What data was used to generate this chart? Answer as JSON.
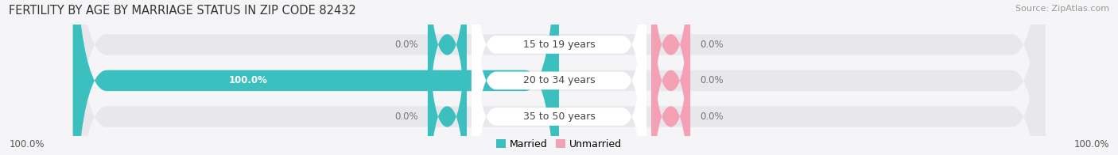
{
  "title": "FERTILITY BY AGE BY MARRIAGE STATUS IN ZIP CODE 82432",
  "source": "Source: ZipAtlas.com",
  "categories": [
    "15 to 19 years",
    "20 to 34 years",
    "35 to 50 years"
  ],
  "married_values": [
    0.0,
    100.0,
    0.0
  ],
  "unmarried_values": [
    0.0,
    0.0,
    0.0
  ],
  "married_color": "#3bbfbf",
  "unmarried_color": "#f4a0b5",
  "bar_bg_color": "#e8e8ec",
  "title_fontsize": 10.5,
  "source_fontsize": 8,
  "label_fontsize": 8.5,
  "category_fontsize": 9,
  "legend_fontsize": 9,
  "background_color": "#f5f5f7",
  "bottom_left_label": "100.0%",
  "bottom_right_label": "100.0%",
  "married_label_color": "#ffffff",
  "zero_label_color": "#777777"
}
